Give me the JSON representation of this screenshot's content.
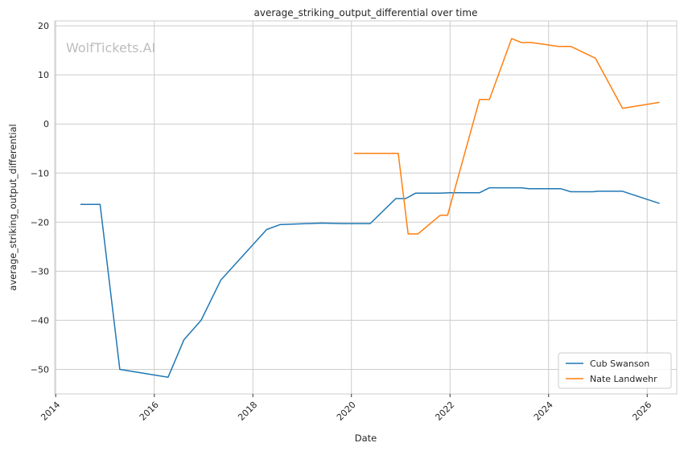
{
  "chart_data": {
    "type": "line",
    "title": "average_striking_output_differential over time",
    "xlabel": "Date",
    "ylabel": "average_striking_output_differential",
    "watermark": "WolfTickets.AI",
    "xlim": [
      2013.98,
      2026.6
    ],
    "ylim": [
      -55,
      21
    ],
    "xticks": [
      2014,
      2016,
      2018,
      2020,
      2022,
      2024,
      2026
    ],
    "yticks": [
      -50,
      -40,
      -30,
      -20,
      -10,
      0,
      10,
      20
    ],
    "ytick_labels": [
      "−50",
      "−40",
      "−30",
      "−20",
      "−10",
      "0",
      "10",
      "20"
    ],
    "grid": true,
    "legend_position": "bottom-right",
    "series": [
      {
        "name": "Cub Swanson",
        "color": "#1f77b4",
        "points": [
          [
            2014.5,
            -16.4
          ],
          [
            2014.9,
            -16.4
          ],
          [
            2015.3,
            -50.0
          ],
          [
            2016.28,
            -51.6
          ],
          [
            2016.6,
            -44.0
          ],
          [
            2016.95,
            -40.0
          ],
          [
            2017.35,
            -31.8
          ],
          [
            2018.28,
            -21.5
          ],
          [
            2018.55,
            -20.5
          ],
          [
            2019.4,
            -20.2
          ],
          [
            2019.8,
            -20.3
          ],
          [
            2020.38,
            -20.3
          ],
          [
            2020.9,
            -15.2
          ],
          [
            2021.1,
            -15.2
          ],
          [
            2021.3,
            -14.1
          ],
          [
            2021.8,
            -14.1
          ],
          [
            2022.0,
            -14.0
          ],
          [
            2022.6,
            -14.0
          ],
          [
            2022.8,
            -13.0
          ],
          [
            2023.45,
            -13.0
          ],
          [
            2023.6,
            -13.2
          ],
          [
            2024.25,
            -13.2
          ],
          [
            2024.45,
            -13.8
          ],
          [
            2024.9,
            -13.8
          ],
          [
            2025.0,
            -13.7
          ],
          [
            2025.5,
            -13.7
          ],
          [
            2026.25,
            -16.2
          ]
        ]
      },
      {
        "name": "Nate Landwehr",
        "color": "#ff7f0e",
        "points": [
          [
            2020.05,
            -6.0
          ],
          [
            2020.95,
            -6.0
          ],
          [
            2021.15,
            -22.4
          ],
          [
            2021.35,
            -22.4
          ],
          [
            2021.8,
            -18.6
          ],
          [
            2021.95,
            -18.6
          ],
          [
            2022.6,
            5.0
          ],
          [
            2022.8,
            5.0
          ],
          [
            2023.25,
            17.4
          ],
          [
            2023.45,
            16.6
          ],
          [
            2023.65,
            16.6
          ],
          [
            2024.2,
            15.8
          ],
          [
            2024.45,
            15.8
          ],
          [
            2024.95,
            13.4
          ],
          [
            2025.5,
            3.2
          ],
          [
            2026.25,
            4.4
          ]
        ]
      }
    ]
  }
}
